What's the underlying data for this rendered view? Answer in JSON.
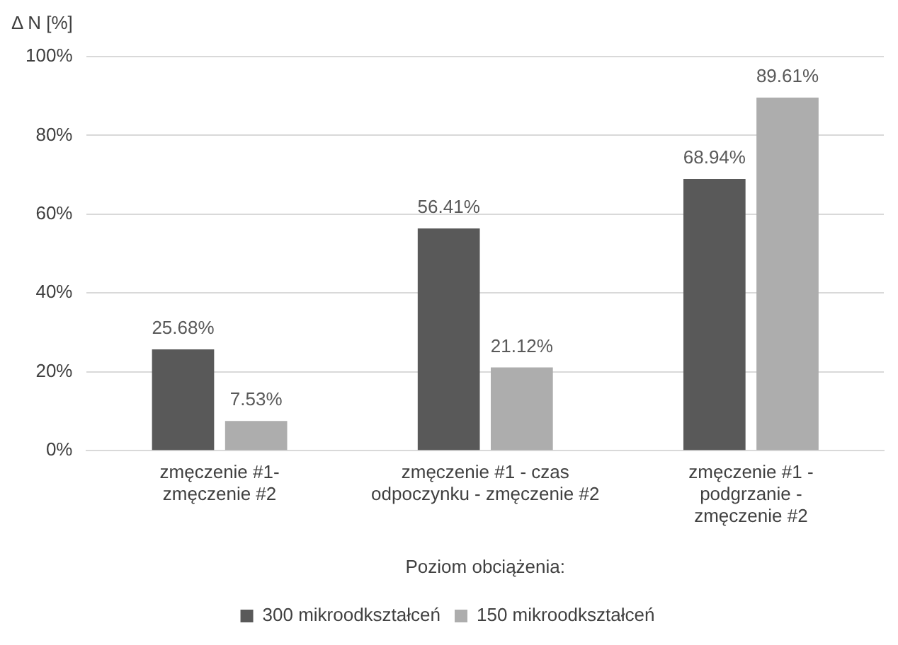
{
  "chart_data": {
    "type": "bar",
    "ylabel": "Δ N [%]",
    "xlabel": "Poziom obciążenia:",
    "categories": [
      "zmęczenie #1-\nzmęczenie #2",
      "zmęczenie #1 - czas\nodpoczynku - zmęczenie #2",
      "zmęczenie #1 -\npodgrzanie -\nzmęczenie #2"
    ],
    "series": [
      {
        "name": "300 mikroodkształceń",
        "color": "#595959",
        "values": [
          25.68,
          56.41,
          68.94
        ],
        "value_labels": [
          "25.68%",
          "56.41%",
          "68.94%"
        ]
      },
      {
        "name": "150 mikroodkształceń",
        "color": "#adadad",
        "values": [
          7.53,
          21.12,
          89.61
        ],
        "value_labels": [
          "7.53%",
          "21.12%",
          "89.61%"
        ]
      }
    ],
    "ylim": [
      0,
      100
    ],
    "yticks": [
      {
        "value": 0,
        "label": "0%"
      },
      {
        "value": 20,
        "label": "20%"
      },
      {
        "value": 40,
        "label": "40%"
      },
      {
        "value": 60,
        "label": "60%"
      },
      {
        "value": 80,
        "label": "80%"
      },
      {
        "value": 100,
        "label": "100%"
      }
    ],
    "grid": "y",
    "legend": "bottom"
  }
}
